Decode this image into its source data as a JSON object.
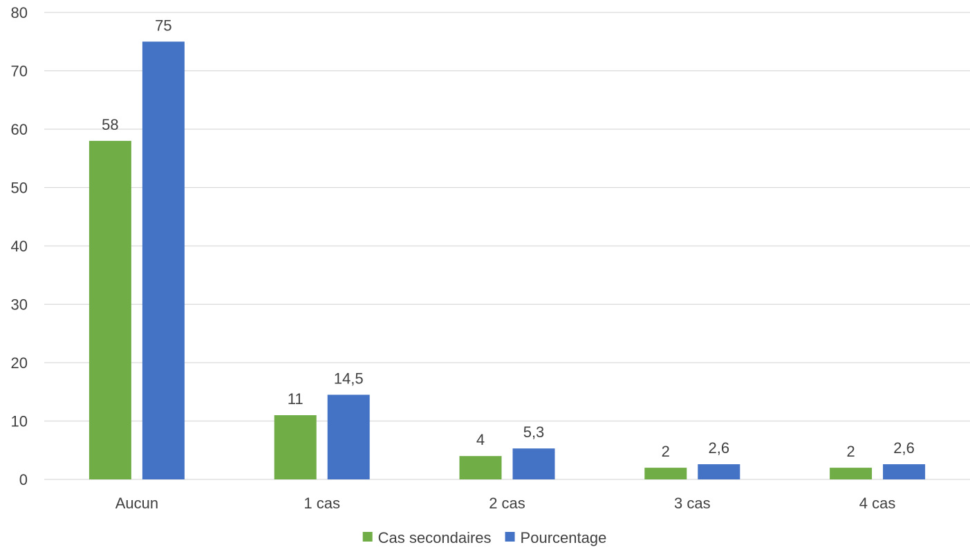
{
  "chart_data": {
    "type": "bar",
    "categories": [
      "Aucun",
      "1 cas",
      "2 cas",
      "3 cas",
      "4 cas"
    ],
    "series": [
      {
        "name": "Cas secondaires",
        "values": [
          58,
          11,
          4,
          2,
          2
        ],
        "labels": [
          "58",
          "11",
          "4",
          "2",
          "2"
        ],
        "color": "#70ad47"
      },
      {
        "name": "Pourcentage",
        "values": [
          75,
          14.5,
          5.3,
          2.6,
          2.6
        ],
        "labels": [
          "75",
          "14,5",
          "5,3",
          "2,6",
          "2,6"
        ],
        "color": "#4472c4"
      }
    ],
    "yticks": [
      "0",
      "10",
      "20",
      "30",
      "40",
      "50",
      "60",
      "70",
      "80"
    ],
    "ylim": [
      0,
      80
    ],
    "title": "",
    "xlabel": "",
    "ylabel": "",
    "grid": true,
    "legend_position": "bottom-center"
  }
}
